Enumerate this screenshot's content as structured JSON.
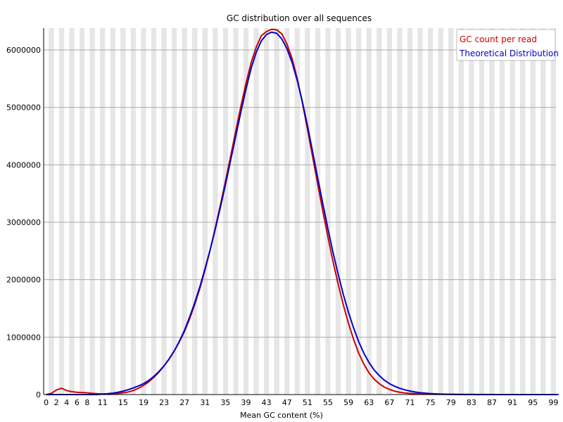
{
  "chart_data": {
    "type": "line",
    "title": "GC distribution over all sequences",
    "xlabel": "Mean GC content (%)",
    "ylabel": "",
    "xlim": [
      0,
      100
    ],
    "ylim": [
      0,
      6380000
    ],
    "grid": true,
    "legend_position": "top-right",
    "x_tick_labels": [
      "0",
      "2",
      "4",
      "6",
      "8",
      "11",
      "15",
      "19",
      "23",
      "27",
      "31",
      "35",
      "39",
      "43",
      "47",
      "51",
      "55",
      "59",
      "63",
      "67",
      "71",
      "75",
      "79",
      "83",
      "87",
      "91",
      "95",
      "99"
    ],
    "y_tick_labels": [
      "0",
      "1000000",
      "2000000",
      "3000000",
      "4000000",
      "5000000",
      "6000000"
    ],
    "series": [
      {
        "name": "GC count per read",
        "color": "#cc0000",
        "points": [
          [
            0,
            0
          ],
          [
            1,
            20000
          ],
          [
            2,
            80000
          ],
          [
            3,
            110000
          ],
          [
            4,
            70000
          ],
          [
            5,
            50000
          ],
          [
            6,
            40000
          ],
          [
            7,
            35000
          ],
          [
            8,
            30000
          ],
          [
            9,
            22000
          ],
          [
            10,
            15000
          ],
          [
            11,
            10000
          ],
          [
            12,
            12000
          ],
          [
            13,
            15000
          ],
          [
            14,
            20000
          ],
          [
            15,
            30000
          ],
          [
            16,
            45000
          ],
          [
            17,
            70000
          ],
          [
            18,
            110000
          ],
          [
            19,
            160000
          ],
          [
            20,
            220000
          ],
          [
            21,
            300000
          ],
          [
            22,
            390000
          ],
          [
            23,
            500000
          ],
          [
            24,
            620000
          ],
          [
            25,
            760000
          ],
          [
            26,
            920000
          ],
          [
            27,
            1100000
          ],
          [
            28,
            1320000
          ],
          [
            29,
            1570000
          ],
          [
            30,
            1850000
          ],
          [
            31,
            2170000
          ],
          [
            32,
            2520000
          ],
          [
            33,
            2900000
          ],
          [
            34,
            3300000
          ],
          [
            35,
            3720000
          ],
          [
            36,
            4150000
          ],
          [
            37,
            4590000
          ],
          [
            38,
            5020000
          ],
          [
            39,
            5420000
          ],
          [
            40,
            5780000
          ],
          [
            41,
            6050000
          ],
          [
            42,
            6250000
          ],
          [
            43,
            6320000
          ],
          [
            44,
            6360000
          ],
          [
            45,
            6350000
          ],
          [
            46,
            6280000
          ],
          [
            47,
            6100000
          ],
          [
            48,
            5850000
          ],
          [
            49,
            5500000
          ],
          [
            50,
            5080000
          ],
          [
            51,
            4620000
          ],
          [
            52,
            4140000
          ],
          [
            53,
            3660000
          ],
          [
            54,
            3190000
          ],
          [
            55,
            2740000
          ],
          [
            56,
            2310000
          ],
          [
            57,
            1920000
          ],
          [
            58,
            1560000
          ],
          [
            59,
            1240000
          ],
          [
            60,
            960000
          ],
          [
            61,
            720000
          ],
          [
            62,
            530000
          ],
          [
            63,
            380000
          ],
          [
            64,
            270000
          ],
          [
            65,
            190000
          ],
          [
            66,
            130000
          ],
          [
            67,
            90000
          ],
          [
            68,
            60000
          ],
          [
            69,
            40000
          ],
          [
            70,
            28000
          ],
          [
            71,
            20000
          ],
          [
            72,
            15000
          ],
          [
            73,
            10000
          ],
          [
            74,
            8000
          ],
          [
            75,
            6000
          ],
          [
            76,
            5000
          ],
          [
            77,
            4000
          ],
          [
            78,
            3500
          ],
          [
            79,
            3000
          ],
          [
            80,
            2500
          ],
          [
            81,
            2000
          ],
          [
            82,
            1800
          ],
          [
            83,
            1500
          ],
          [
            84,
            1200
          ],
          [
            85,
            1000
          ],
          [
            86,
            900
          ],
          [
            87,
            800
          ],
          [
            88,
            700
          ],
          [
            89,
            600
          ],
          [
            90,
            500
          ],
          [
            91,
            450
          ],
          [
            92,
            400
          ],
          [
            93,
            350
          ],
          [
            94,
            300
          ],
          [
            95,
            250
          ],
          [
            96,
            200
          ],
          [
            97,
            180
          ],
          [
            98,
            150
          ],
          [
            99,
            120
          ],
          [
            100,
            100
          ]
        ]
      },
      {
        "name": "Theoretical Distribution",
        "color": "#0000cc",
        "points": [
          [
            0,
            0
          ],
          [
            1,
            0
          ],
          [
            2,
            0
          ],
          [
            3,
            0
          ],
          [
            4,
            0
          ],
          [
            5,
            0
          ],
          [
            6,
            0
          ],
          [
            7,
            0
          ],
          [
            8,
            0
          ],
          [
            9,
            0
          ],
          [
            10,
            2000
          ],
          [
            11,
            8000
          ],
          [
            12,
            15000
          ],
          [
            13,
            25000
          ],
          [
            14,
            40000
          ],
          [
            15,
            60000
          ],
          [
            16,
            85000
          ],
          [
            17,
            115000
          ],
          [
            18,
            150000
          ],
          [
            19,
            190000
          ],
          [
            20,
            245000
          ],
          [
            21,
            315000
          ],
          [
            22,
            400000
          ],
          [
            23,
            500000
          ],
          [
            24,
            620000
          ],
          [
            25,
            760000
          ],
          [
            26,
            930000
          ],
          [
            27,
            1120000
          ],
          [
            28,
            1350000
          ],
          [
            29,
            1600000
          ],
          [
            30,
            1880000
          ],
          [
            31,
            2190000
          ],
          [
            32,
            2520000
          ],
          [
            33,
            2880000
          ],
          [
            34,
            3260000
          ],
          [
            35,
            3660000
          ],
          [
            36,
            4080000
          ],
          [
            37,
            4500000
          ],
          [
            38,
            4920000
          ],
          [
            39,
            5320000
          ],
          [
            40,
            5680000
          ],
          [
            41,
            5960000
          ],
          [
            42,
            6160000
          ],
          [
            43,
            6270000
          ],
          [
            44,
            6310000
          ],
          [
            45,
            6290000
          ],
          [
            46,
            6190000
          ],
          [
            47,
            6020000
          ],
          [
            48,
            5780000
          ],
          [
            49,
            5470000
          ],
          [
            50,
            5100000
          ],
          [
            51,
            4680000
          ],
          [
            52,
            4230000
          ],
          [
            53,
            3770000
          ],
          [
            54,
            3320000
          ],
          [
            55,
            2880000
          ],
          [
            56,
            2470000
          ],
          [
            57,
            2090000
          ],
          [
            58,
            1740000
          ],
          [
            59,
            1430000
          ],
          [
            60,
            1160000
          ],
          [
            61,
            920000
          ],
          [
            62,
            720000
          ],
          [
            63,
            560000
          ],
          [
            64,
            430000
          ],
          [
            65,
            330000
          ],
          [
            66,
            250000
          ],
          [
            67,
            190000
          ],
          [
            68,
            145000
          ],
          [
            69,
            110000
          ],
          [
            70,
            82000
          ],
          [
            71,
            61000
          ],
          [
            72,
            45000
          ],
          [
            73,
            33000
          ],
          [
            74,
            24000
          ],
          [
            75,
            17000
          ],
          [
            76,
            12000
          ],
          [
            77,
            8500
          ],
          [
            78,
            6000
          ],
          [
            79,
            4200
          ],
          [
            80,
            3000
          ],
          [
            81,
            2100
          ],
          [
            82,
            1500
          ],
          [
            83,
            1000
          ],
          [
            84,
            700
          ],
          [
            85,
            500
          ],
          [
            86,
            350
          ],
          [
            87,
            250
          ],
          [
            88,
            170
          ],
          [
            89,
            120
          ],
          [
            90,
            80
          ],
          [
            91,
            60
          ],
          [
            92,
            40
          ],
          [
            93,
            30
          ],
          [
            94,
            20
          ],
          [
            95,
            15
          ],
          [
            96,
            10
          ],
          [
            97,
            8
          ],
          [
            98,
            5
          ],
          [
            99,
            3
          ],
          [
            100,
            2
          ]
        ]
      }
    ]
  }
}
